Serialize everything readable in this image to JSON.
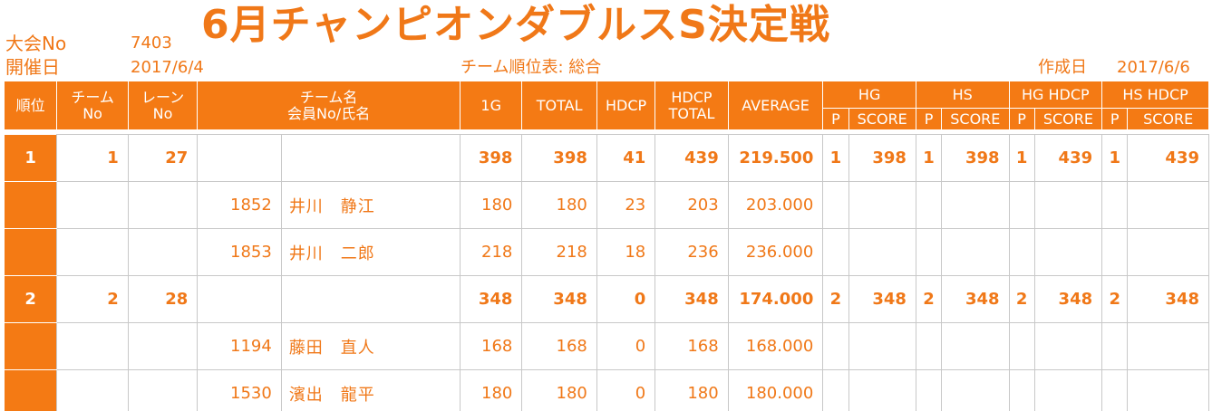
{
  "header": {
    "event_label": "大会No",
    "event_no": "7403",
    "title": "6月チャンピオンダブルスS決定戦",
    "date_label": "開催日",
    "date": "2017/6/4",
    "report_name": "チーム順位表: 総合",
    "created_label": "作成日",
    "created_date": "2017/6/6"
  },
  "columns": {
    "rank": "順位",
    "team_no_1": "チーム",
    "team_no_2": "No",
    "lane_no_1": "レーン",
    "lane_no_2": "No",
    "team_name_1": "チーム名",
    "team_name_2": "会員No/氏名",
    "g1": "1G",
    "total": "TOTAL",
    "hdcp": "HDCP",
    "hdcp_total_1": "HDCP",
    "hdcp_total_2": "TOTAL",
    "average": "AVERAGE",
    "hg": "HG",
    "hs": "HS",
    "hg_hdcp": "HG HDCP",
    "hs_hdcp": "HS HDCP",
    "p": "P",
    "score": "SCORE"
  },
  "rows": [
    {
      "type": "team",
      "rank": "1",
      "team_no": "1",
      "lane_no": "27",
      "member_no": "",
      "name": "",
      "g1": "398",
      "total": "398",
      "hdcp": "41",
      "hdcp_total": "439",
      "average": "219.500",
      "hg_p": "1",
      "hg_score": "398",
      "hs_p": "1",
      "hs_score": "398",
      "hgh_p": "1",
      "hgh_score": "439",
      "hsh_p": "1",
      "hsh_score": "439"
    },
    {
      "type": "member",
      "rank": "",
      "team_no": "",
      "lane_no": "",
      "member_no": "1852",
      "name": "井川　静江",
      "g1": "180",
      "total": "180",
      "hdcp": "23",
      "hdcp_total": "203",
      "average": "203.000",
      "hg_p": "",
      "hg_score": "",
      "hs_p": "",
      "hs_score": "",
      "hgh_p": "",
      "hgh_score": "",
      "hsh_p": "",
      "hsh_score": ""
    },
    {
      "type": "member",
      "rank": "",
      "team_no": "",
      "lane_no": "",
      "member_no": "1853",
      "name": "井川　二郎",
      "g1": "218",
      "total": "218",
      "hdcp": "18",
      "hdcp_total": "236",
      "average": "236.000",
      "hg_p": "",
      "hg_score": "",
      "hs_p": "",
      "hs_score": "",
      "hgh_p": "",
      "hgh_score": "",
      "hsh_p": "",
      "hsh_score": ""
    },
    {
      "type": "team",
      "rank": "2",
      "team_no": "2",
      "lane_no": "28",
      "member_no": "",
      "name": "",
      "g1": "348",
      "total": "348",
      "hdcp": "0",
      "hdcp_total": "348",
      "average": "174.000",
      "hg_p": "2",
      "hg_score": "348",
      "hs_p": "2",
      "hs_score": "348",
      "hgh_p": "2",
      "hgh_score": "348",
      "hsh_p": "2",
      "hsh_score": "348"
    },
    {
      "type": "member",
      "rank": "",
      "team_no": "",
      "lane_no": "",
      "member_no": "1194",
      "name": "藤田　直人",
      "g1": "168",
      "total": "168",
      "hdcp": "0",
      "hdcp_total": "168",
      "average": "168.000",
      "hg_p": "",
      "hg_score": "",
      "hs_p": "",
      "hs_score": "",
      "hgh_p": "",
      "hgh_score": "",
      "hsh_p": "",
      "hsh_score": ""
    },
    {
      "type": "member",
      "rank": "",
      "team_no": "",
      "lane_no": "",
      "member_no": "1530",
      "name": "濱出　龍平",
      "g1": "180",
      "total": "180",
      "hdcp": "0",
      "hdcp_total": "180",
      "average": "180.000",
      "hg_p": "",
      "hg_score": "",
      "hs_p": "",
      "hs_score": "",
      "hgh_p": "",
      "hgh_score": "",
      "hsh_p": "",
      "hsh_score": ""
    }
  ],
  "colors": {
    "accent": "#f47a14",
    "text": "#f07818",
    "grid": "#c8c8c8"
  }
}
